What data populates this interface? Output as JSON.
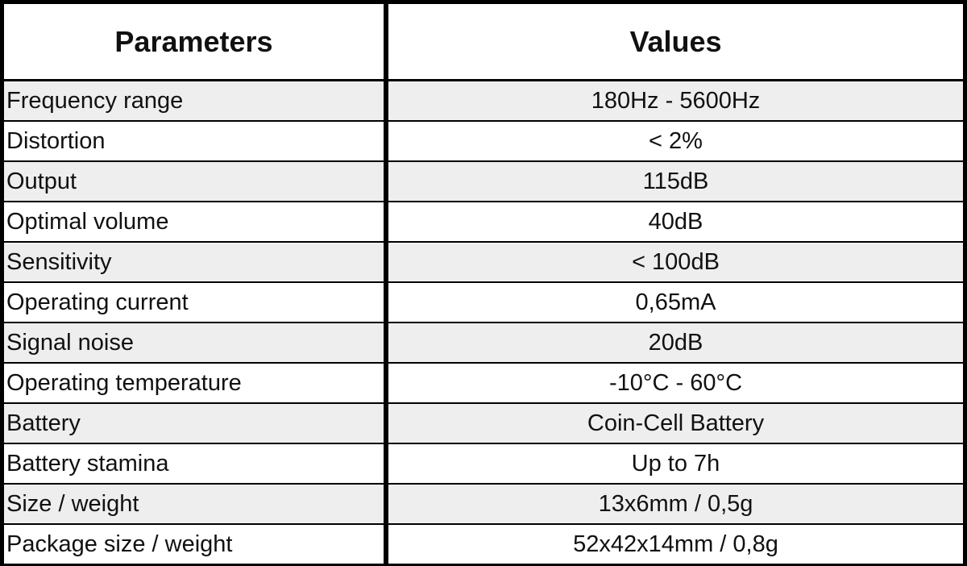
{
  "header": {
    "columns": [
      "Parameters",
      "Values"
    ]
  },
  "table": {
    "rows": [
      [
        "Frequency range",
        "180Hz - 5600Hz"
      ],
      [
        "Distortion",
        "< 2%"
      ],
      [
        "Output",
        "115dB"
      ],
      [
        "Optimal volume",
        "40dB"
      ],
      [
        "Sensitivity",
        "< 100dB"
      ],
      [
        "Operating current",
        "0,65mA"
      ],
      [
        "Signal noise",
        "20dB"
      ],
      [
        "Operating temperature",
        "-10°C - 60°C"
      ],
      [
        "Battery",
        "Coin-Cell Battery"
      ],
      [
        "Battery stamina",
        "Up to 7h"
      ],
      [
        "Size / weight",
        "13x6mm / 0,5g"
      ],
      [
        "Package size / weight",
        "52x42x14mm / 0,8g"
      ]
    ]
  }
}
